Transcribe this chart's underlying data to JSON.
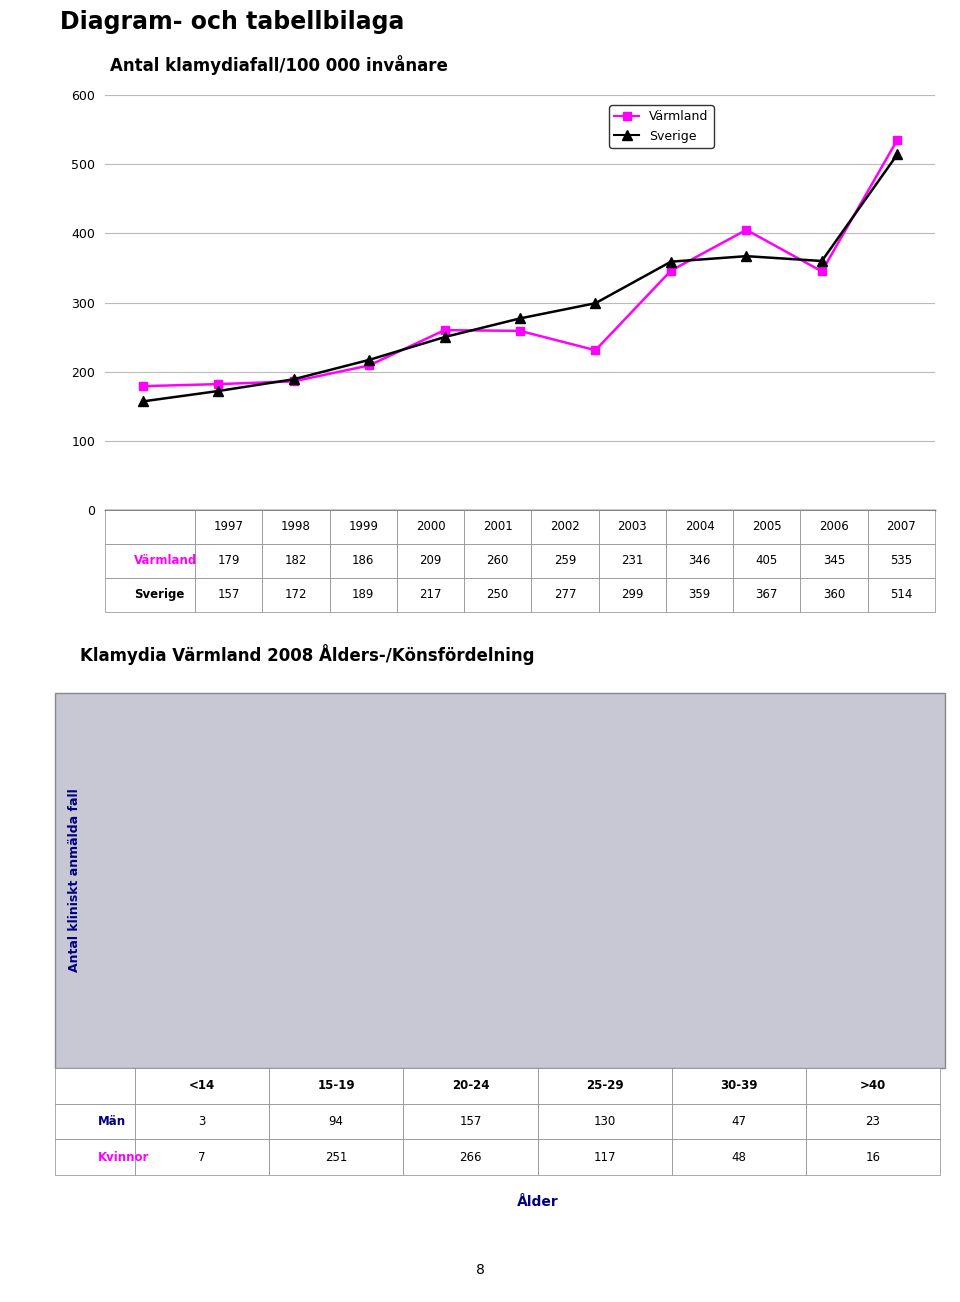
{
  "page_title": "Diagram- och tabellbilaga",
  "chart1": {
    "title": "Antal klamydiafall/100 000 invånare",
    "years": [
      1997,
      1998,
      1999,
      2000,
      2001,
      2002,
      2003,
      2004,
      2005,
      2006,
      2007
    ],
    "varmland": [
      179,
      182,
      186,
      209,
      260,
      259,
      231,
      346,
      405,
      345,
      535
    ],
    "sverige": [
      157,
      172,
      189,
      217,
      250,
      277,
      299,
      359,
      367,
      360,
      514
    ],
    "varmland_color": "#FF00FF",
    "sverige_color": "#000000",
    "ylim": [
      0,
      600
    ],
    "yticks": [
      0,
      100,
      200,
      300,
      400,
      500,
      600
    ],
    "legend_labels": [
      "Värmland",
      "Sverige"
    ],
    "table_row1_label": "Värmland",
    "table_row2_label": "Sverige",
    "table_row1": [
      179,
      182,
      186,
      209,
      260,
      259,
      231,
      346,
      405,
      345,
      535
    ],
    "table_row2": [
      157,
      172,
      189,
      217,
      250,
      277,
      299,
      359,
      367,
      360,
      514
    ]
  },
  "chart2": {
    "title": "Klamydia Värmland 2008 Ålders-/Könsfördelning",
    "categories": [
      "<14",
      "15-19",
      "20-24",
      "25-29",
      "30-39",
      ">40"
    ],
    "man": [
      3,
      94,
      157,
      130,
      47,
      23
    ],
    "kvinnor": [
      7,
      251,
      266,
      117,
      48,
      16
    ],
    "man_color": "#000080",
    "kvinnor_color": "#FF00FF",
    "ylim": [
      0,
      300
    ],
    "yticks": [
      0,
      50,
      100,
      150,
      200,
      250,
      300
    ],
    "ylabel": "Antal kliniskt anmälda fall",
    "xlabel": "Ålder",
    "man_label": "Män",
    "kvinnor_label": "Kvinnor",
    "table_row1": [
      3,
      94,
      157,
      130,
      47,
      23
    ],
    "table_row2": [
      7,
      251,
      266,
      117,
      48,
      16
    ],
    "bg_color": "#C8C8D4"
  },
  "page_number": "8",
  "bg": "#FFFFFF"
}
